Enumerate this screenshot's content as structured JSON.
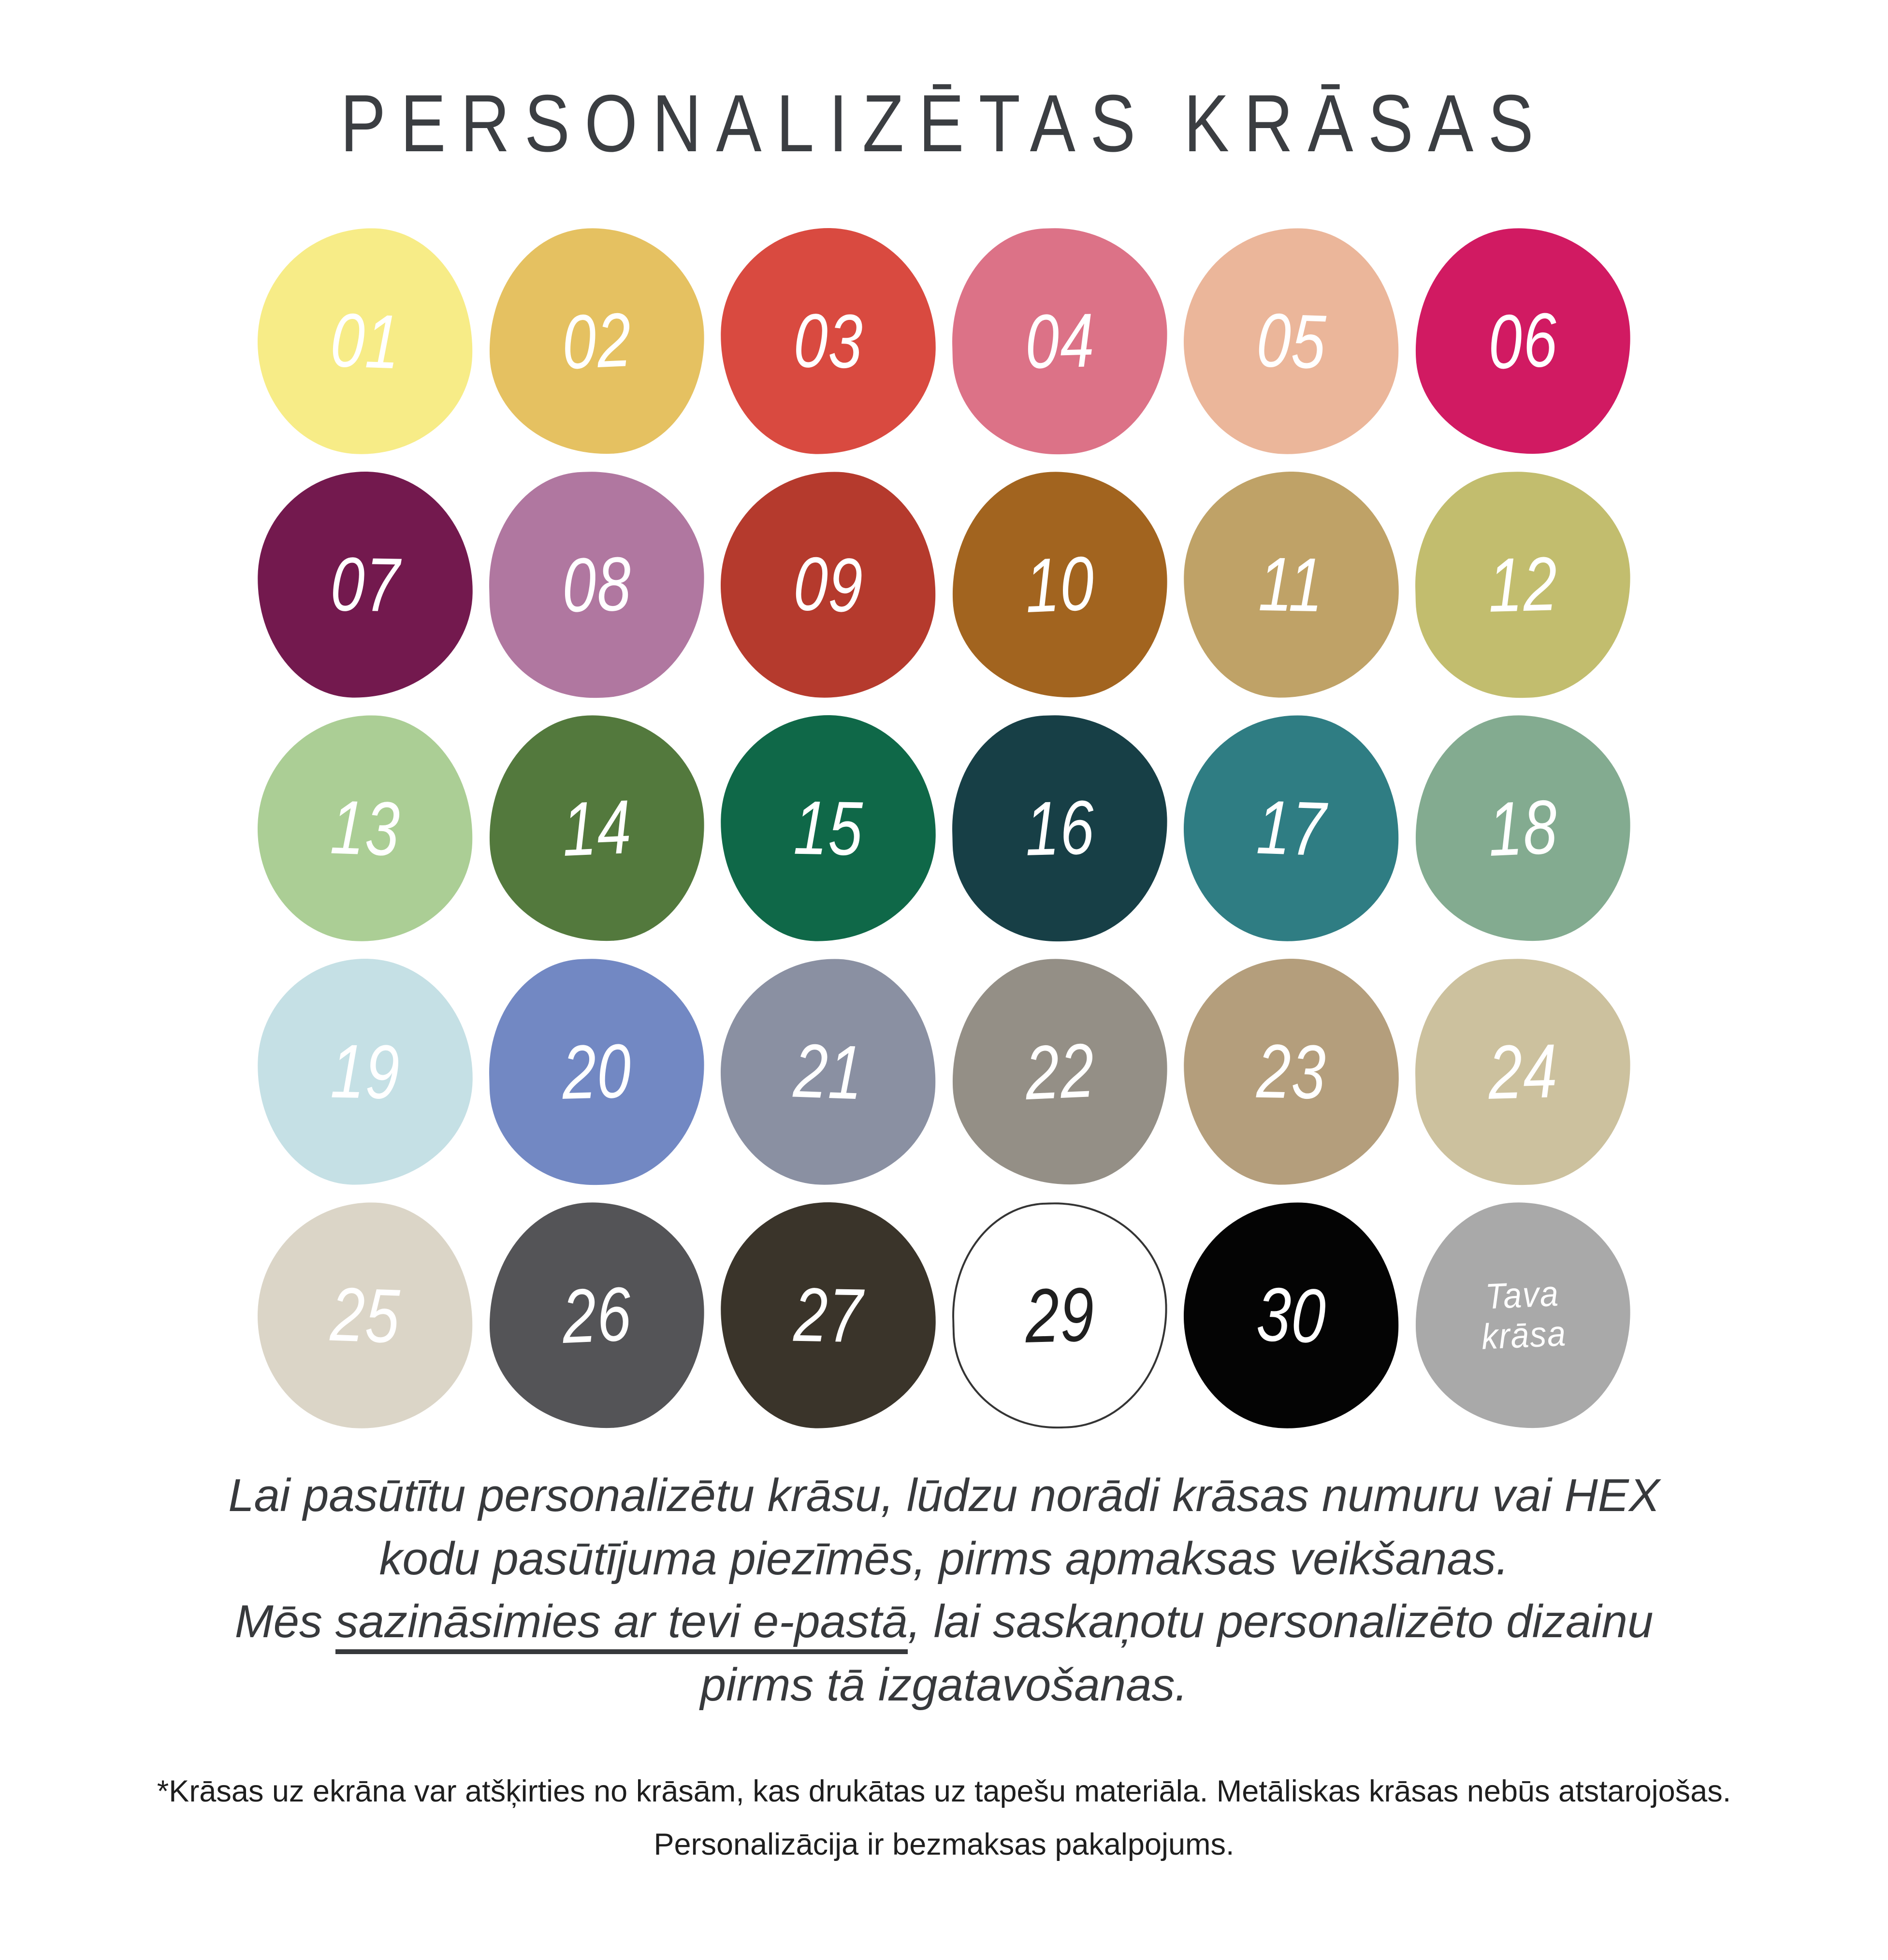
{
  "title": "PERSONALIZĒTAS KRĀSAS",
  "palette": {
    "swatches": [
      {
        "label": "01",
        "color": "#F7EC87",
        "text_color": "#FFFFFF"
      },
      {
        "label": "02",
        "color": "#E5C161",
        "text_color": "#FFFFFF"
      },
      {
        "label": "03",
        "color": "#D94A40",
        "text_color": "#FFFFFF"
      },
      {
        "label": "04",
        "color": "#DC7287",
        "text_color": "#FFFFFF"
      },
      {
        "label": "05",
        "color": "#EBB69A",
        "text_color": "#FFFFFF"
      },
      {
        "label": "06",
        "color": "#D11A62",
        "text_color": "#FFFFFF"
      },
      {
        "label": "07",
        "color": "#73194E",
        "text_color": "#FFFFFF"
      },
      {
        "label": "08",
        "color": "#B077A0",
        "text_color": "#FFFFFF"
      },
      {
        "label": "09",
        "color": "#B53A2D",
        "text_color": "#FFFFFF"
      },
      {
        "label": "10",
        "color": "#A2641F",
        "text_color": "#FFFFFF"
      },
      {
        "label": "11",
        "color": "#BFA267",
        "text_color": "#FFFFFF"
      },
      {
        "label": "12",
        "color": "#C2BD6E",
        "text_color": "#FFFFFF"
      },
      {
        "label": "13",
        "color": "#ABCE95",
        "text_color": "#FFFFFF"
      },
      {
        "label": "14",
        "color": "#53793D",
        "text_color": "#FFFFFF"
      },
      {
        "label": "15",
        "color": "#0F6848",
        "text_color": "#FFFFFF"
      },
      {
        "label": "16",
        "color": "#173F46",
        "text_color": "#FFFFFF"
      },
      {
        "label": "17",
        "color": "#2F7D83",
        "text_color": "#FFFFFF"
      },
      {
        "label": "18",
        "color": "#83AB90",
        "text_color": "#FFFFFF"
      },
      {
        "label": "19",
        "color": "#C5E0E5",
        "text_color": "#FFFFFF"
      },
      {
        "label": "20",
        "color": "#7288C3",
        "text_color": "#FFFFFF"
      },
      {
        "label": "21",
        "color": "#8A90A2",
        "text_color": "#FFFFFF"
      },
      {
        "label": "22",
        "color": "#948F86",
        "text_color": "#FFFFFF"
      },
      {
        "label": "23",
        "color": "#B49E7C",
        "text_color": "#FFFFFF"
      },
      {
        "label": "24",
        "color": "#CCC19E",
        "text_color": "#FFFFFF"
      },
      {
        "label": "25",
        "color": "#DBD5C7",
        "text_color": "#FFFFFF"
      },
      {
        "label": "26",
        "color": "#545457",
        "text_color": "#FFFFFF"
      },
      {
        "label": "27",
        "color": "#3A342A",
        "text_color": "#FFFFFF"
      },
      {
        "label": "29",
        "color": "#FFFFFF",
        "text_color": "#1F1F1F",
        "outline": true
      },
      {
        "label": "30",
        "color": "#040404",
        "text_color": "#FFFFFF"
      },
      {
        "label": "Tava krāsa",
        "color": "#A9A9A9",
        "text_color": "#FFFFFF",
        "multiline": true
      }
    ]
  },
  "description": {
    "line1": "Lai pasūtītu personalizētu krāsu, lūdzu norādi krāsas numuru vai HEX",
    "line2": "kodu pasūtījuma piezīmēs, pirms apmaksas veikšanas.",
    "line3_prefix": "Mēs ",
    "line3_underlined": "sazināsimies ar tevi e-pastā",
    "line3_suffix": ", lai saskaņotu personalizēto dizainu",
    "line4": "pirms tā izgatavošanas."
  },
  "footnote": {
    "line1": "*Krāsas uz ekrāna var atšķirties no krāsām, kas drukātas uz tapešu materiāla. Metāliskas krāsas nebūs atstarojošas.",
    "line2": "Personalizācija ir bezmaksas pakalpojums."
  }
}
